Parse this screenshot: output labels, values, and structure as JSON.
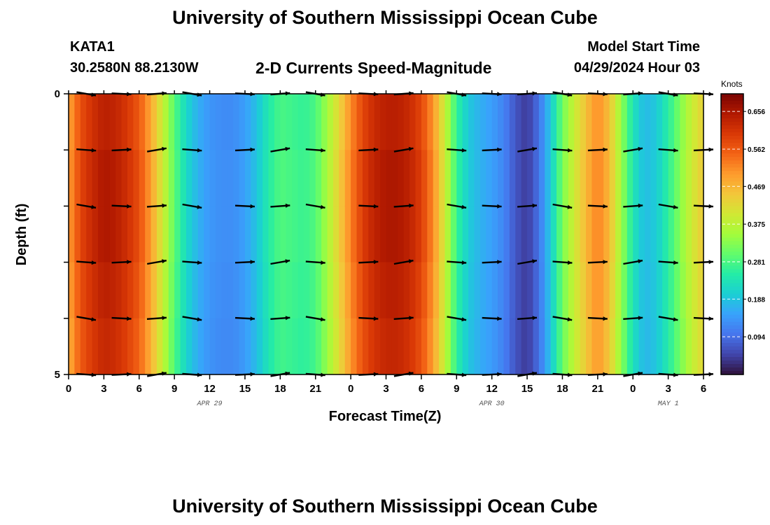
{
  "header": {
    "title": "University of Southern Mississippi Ocean Cube",
    "station": "KATA1",
    "coords": "30.2580N  88.2130W",
    "subtitle": "2-D Currents Speed-Magnitude",
    "model_start_label": "Model Start Time",
    "model_start_value": "04/29/2024 Hour 03"
  },
  "footer": {
    "title": "University of Southern Mississippi Ocean Cube"
  },
  "colors": {
    "palette": [
      "#30123b",
      "#4145ab",
      "#4675ed",
      "#39a2fc",
      "#1bcfd4",
      "#24eca6",
      "#61fc6c",
      "#a4fc3b",
      "#d1e834",
      "#f3c63a",
      "#fe9b2d",
      "#f36315",
      "#d93806",
      "#b11901",
      "#7a0403"
    ]
  },
  "chart_data": {
    "type": "heatmap",
    "title": "2-D Currents Speed-Magnitude",
    "xlabel": "Forecast Time(Z)",
    "ylabel": "Depth (ft)",
    "colorbar_label": "Knots",
    "x_tick_labels": [
      "0",
      "3",
      "6",
      "9",
      "12",
      "15",
      "18",
      "21",
      "0",
      "3",
      "6",
      "9",
      "12",
      "15",
      "18",
      "21",
      "0",
      "3",
      "6"
    ],
    "x_hours": [
      0,
      3,
      6,
      9,
      12,
      15,
      18,
      21,
      24,
      27,
      30,
      33,
      36,
      39,
      42,
      45,
      48,
      51,
      54
    ],
    "x_range_hours": [
      0,
      54
    ],
    "date_labels": [
      {
        "label": "APR 29",
        "hour": 12
      },
      {
        "label": "APR 30",
        "hour": 36
      },
      {
        "label": "MAY 1",
        "hour": 51
      }
    ],
    "y_tick_labels": [
      "0",
      "5"
    ],
    "y_range": [
      0,
      5
    ],
    "y_inverted": true,
    "colorbar_ticks": [
      "0.656",
      "0.562",
      "0.469",
      "0.375",
      "0.281",
      "0.188",
      "0.094"
    ],
    "colorbar_tick_values": [
      0.656,
      0.562,
      0.469,
      0.375,
      0.281,
      0.188,
      0.094
    ],
    "colorbar_range": [
      0.0,
      0.7
    ],
    "speed_knots_by_hour": [
      [
        0,
        0.5
      ],
      [
        1,
        0.59
      ],
      [
        2,
        0.63
      ],
      [
        3,
        0.66
      ],
      [
        4,
        0.65
      ],
      [
        5,
        0.62
      ],
      [
        6,
        0.58
      ],
      [
        7,
        0.5
      ],
      [
        8,
        0.4
      ],
      [
        9,
        0.3
      ],
      [
        10,
        0.22
      ],
      [
        11,
        0.17
      ],
      [
        12,
        0.14
      ],
      [
        13,
        0.13
      ],
      [
        14,
        0.13
      ],
      [
        15,
        0.15
      ],
      [
        16,
        0.19
      ],
      [
        17,
        0.25
      ],
      [
        18,
        0.29
      ],
      [
        19,
        0.28
      ],
      [
        20,
        0.27
      ],
      [
        21,
        0.29
      ],
      [
        22,
        0.36
      ],
      [
        23,
        0.44
      ],
      [
        24,
        0.53
      ],
      [
        25,
        0.6
      ],
      [
        26,
        0.64
      ],
      [
        27,
        0.66
      ],
      [
        28,
        0.66
      ],
      [
        29,
        0.64
      ],
      [
        30,
        0.6
      ],
      [
        31,
        0.52
      ],
      [
        32,
        0.4
      ],
      [
        33,
        0.27
      ],
      [
        34,
        0.2
      ],
      [
        35,
        0.17
      ],
      [
        36,
        0.15
      ],
      [
        37,
        0.12
      ],
      [
        38,
        0.07
      ],
      [
        39,
        0.04
      ],
      [
        40,
        0.1
      ],
      [
        41,
        0.2
      ],
      [
        42,
        0.32
      ],
      [
        43,
        0.4
      ],
      [
        44,
        0.47
      ],
      [
        45,
        0.53
      ],
      [
        46,
        0.47
      ],
      [
        47,
        0.35
      ],
      [
        48,
        0.24
      ],
      [
        49,
        0.18
      ],
      [
        50,
        0.2
      ],
      [
        51,
        0.26
      ],
      [
        52,
        0.33
      ],
      [
        53,
        0.4
      ],
      [
        54,
        0.45
      ]
    ],
    "vector_hours": [
      1.5,
      4.5,
      7.5,
      10.5,
      15,
      18,
      21,
      25.5,
      28.5,
      33,
      36,
      39,
      42,
      45,
      48,
      51,
      54
    ]
  }
}
